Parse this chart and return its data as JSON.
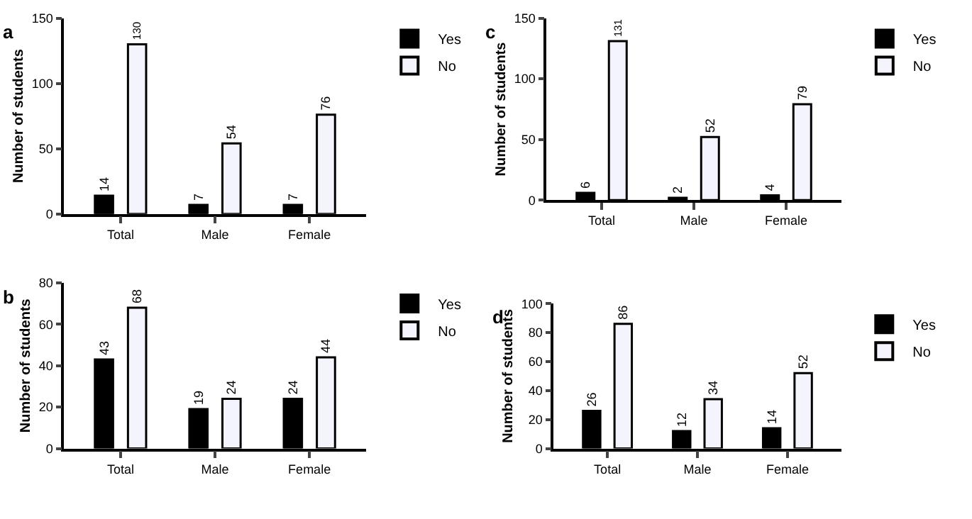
{
  "chart_data": [
    {
      "type": "bar",
      "title": "a",
      "ylabel": "Number of students",
      "categories": [
        "Total",
        "Male",
        "Female"
      ],
      "ylim": [
        0,
        150
      ],
      "yticks": [
        0,
        50,
        100,
        150
      ],
      "data_labels": true,
      "legend": "top right",
      "series": [
        {
          "name": "Yes",
          "color": "#000000",
          "values": [
            14,
            7,
            7
          ]
        },
        {
          "name": "No",
          "color": "#f4f4fc",
          "values": [
            130,
            54,
            76
          ]
        }
      ]
    },
    {
      "type": "bar",
      "title": "c",
      "ylabel": "Number of students",
      "categories": [
        "Total",
        "Male",
        "Female"
      ],
      "ylim": [
        0,
        150
      ],
      "yticks": [
        0,
        50,
        100,
        150
      ],
      "data_labels": true,
      "legend": "top right",
      "series": [
        {
          "name": "Yes",
          "color": "#000000",
          "values": [
            6,
            2,
            4
          ]
        },
        {
          "name": "No",
          "color": "#f4f4fc",
          "values": [
            131,
            52,
            79
          ]
        }
      ]
    },
    {
      "type": "bar",
      "title": "b",
      "ylabel": "Number of students",
      "categories": [
        "Total",
        "Male",
        "Female"
      ],
      "ylim": [
        0,
        80
      ],
      "yticks": [
        0,
        20,
        40,
        60,
        80
      ],
      "data_labels": true,
      "legend": "top right",
      "series": [
        {
          "name": "Yes",
          "color": "#000000",
          "values": [
            43,
            19,
            24
          ]
        },
        {
          "name": "No",
          "color": "#f4f4fc",
          "values": [
            68,
            24,
            44
          ]
        }
      ]
    },
    {
      "type": "bar",
      "title": "d",
      "ylabel": "Number of students",
      "categories": [
        "Total",
        "Male",
        "Female"
      ],
      "ylim": [
        0,
        100
      ],
      "yticks": [
        0,
        20,
        40,
        60,
        80,
        100
      ],
      "data_labels": true,
      "legend": "top right",
      "series": [
        {
          "name": "Yes",
          "color": "#000000",
          "values": [
            26,
            12,
            14
          ]
        },
        {
          "name": "No",
          "color": "#f4f4fc",
          "values": [
            86,
            34,
            52
          ]
        }
      ]
    }
  ]
}
